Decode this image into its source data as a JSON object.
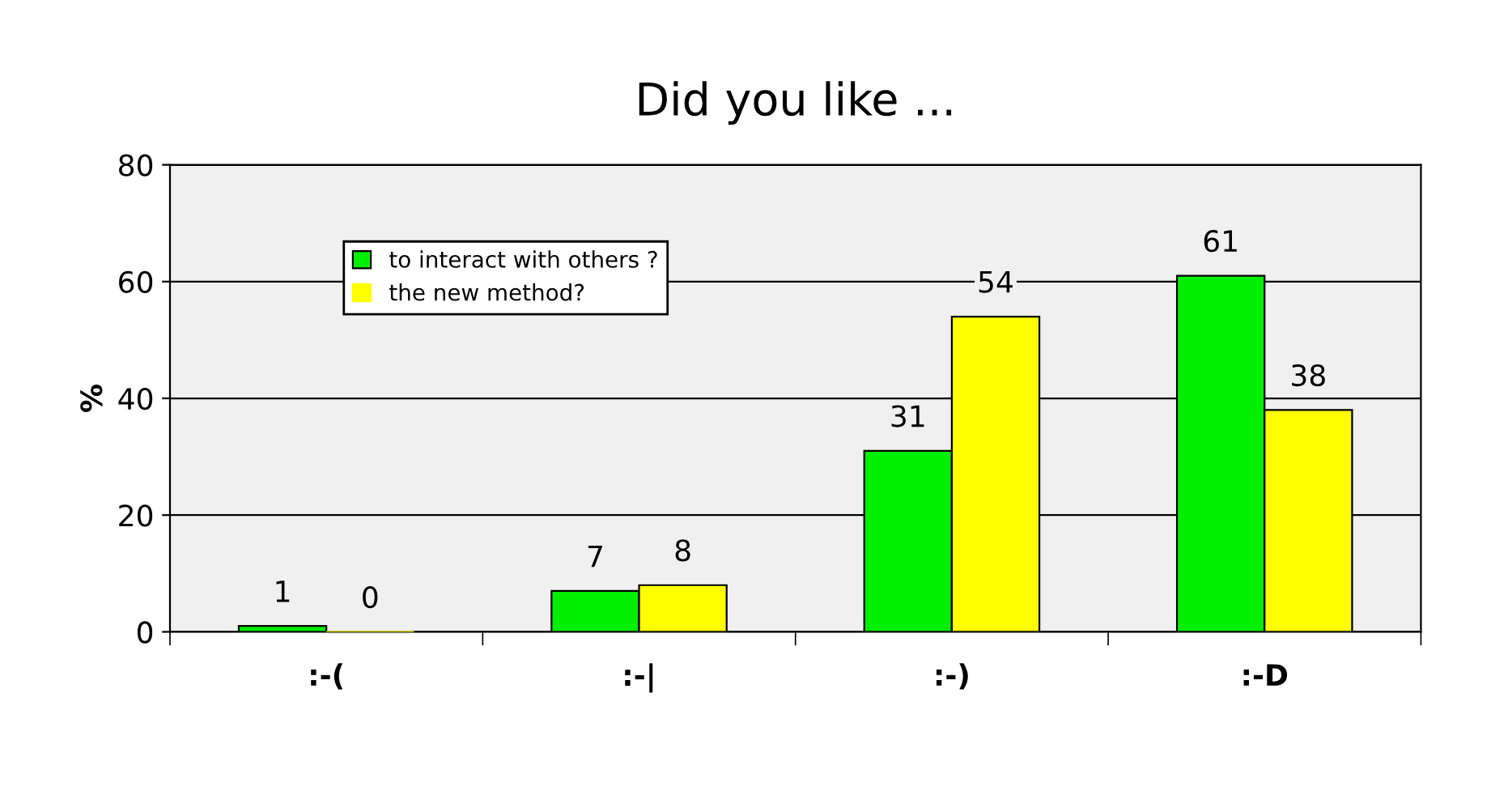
{
  "chart_data": {
    "type": "bar",
    "title": "Did you like ...",
    "ylabel": "%",
    "categories": [
      ":-(",
      ":-|",
      ":-)",
      ":-D"
    ],
    "series": [
      {
        "name": "to interact with others ?",
        "color": "#00ee00",
        "values": [
          1,
          7,
          31,
          61
        ]
      },
      {
        "name": "the new method?",
        "color": "#ffff00",
        "values": [
          0,
          8,
          54,
          38
        ]
      }
    ],
    "ylim": [
      0,
      80
    ],
    "yticks": [
      0,
      20,
      40,
      60,
      80
    ],
    "grid": "y",
    "legend": "top left",
    "data_labels": true
  }
}
